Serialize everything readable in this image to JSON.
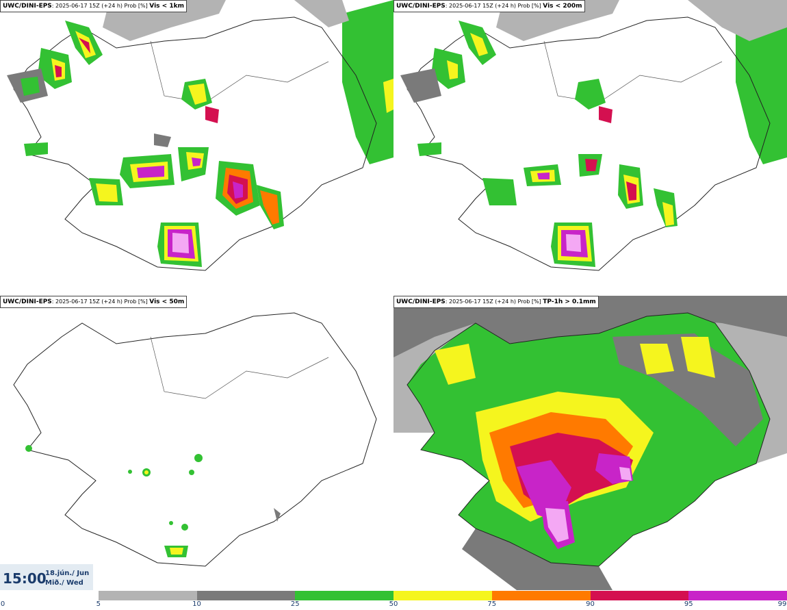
{
  "panels": [
    {
      "src": "UWC/DINI-EPS",
      "meta": ": 2025-06-17 15Z (+24 h) Prob [%] ",
      "field": "Vis < 1km"
    },
    {
      "src": "UWC/DINI-EPS",
      "meta": ": 2025-06-17 15Z (+24 h) Prob [%] ",
      "field": "Vis < 200m"
    },
    {
      "src": "UWC/DINI-EPS",
      "meta": ": 2025-06-17 15Z (+24 h) Prob [%] ",
      "field": "Vis < 50m"
    },
    {
      "src": "UWC/DINI-EPS",
      "meta": ": 2025-06-17 15Z (+24 h) Prob [%] ",
      "field": "TP-1h > 0.1mm"
    }
  ],
  "valid_time": {
    "time": "15:00",
    "date_line1": "18.jún./ Jun",
    "date_line2": "Mið./ Wed"
  },
  "colorbar": {
    "ticks": [
      "0",
      "5",
      "10",
      "25",
      "50",
      "75",
      "90",
      "95",
      "99"
    ],
    "colors": [
      "#ffffff",
      "#b3b3b3",
      "#7a7a7a",
      "#33c133",
      "#f5f51e",
      "#ff7a00",
      "#d41050",
      "#c824c8",
      "#f4a8f4"
    ]
  }
}
